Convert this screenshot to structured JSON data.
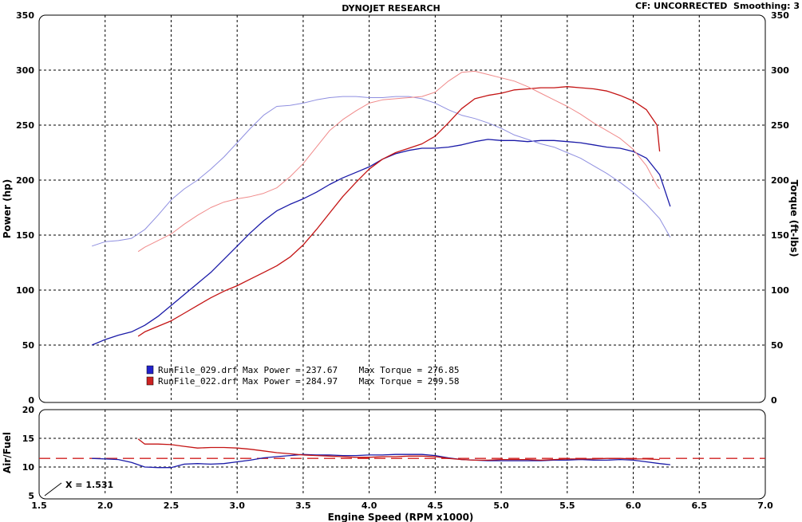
{
  "header": {
    "title": "DYNOJET RESEARCH",
    "cf_text": "CF: UNCORRECTED  Smoothing: 3"
  },
  "cursor_readout": "X = 1.531",
  "colors": {
    "run029_power": "#1a1aa8",
    "run029_torque": "#8f8fe0",
    "run022_power": "#c41414",
    "run022_torque": "#f08a8a",
    "afr_target": "#d02020"
  },
  "legend": [
    {
      "swatch_color": "#2222cc",
      "text": "RunFile_029.drf Max Power = 237.67    Max Torque = 276.85"
    },
    {
      "swatch_color": "#cc2222",
      "text": "RunFile_022.drf Max Power = 284.97    Max Torque = 299.58"
    }
  ],
  "chart_data": [
    {
      "type": "line",
      "title": "DYNOJET RESEARCH",
      "xlabel": "Engine Speed (RPM x1000)",
      "ylabel": "Power (hp)",
      "y2label": "Torque (ft-lbs)",
      "xlim": [
        1.5,
        7.0
      ],
      "ylim": [
        0,
        350
      ],
      "y2lim": [
        0,
        350
      ],
      "xticks": [
        "1.5",
        "2.0",
        "2.5",
        "3.0",
        "3.5",
        "4.0",
        "4.5",
        "5.0",
        "5.5",
        "6.0",
        "6.5",
        "7.0"
      ],
      "yticks": [
        "0",
        "50",
        "100",
        "150",
        "200",
        "250",
        "300",
        "350"
      ],
      "y2ticks": [
        "0",
        "50",
        "100",
        "150",
        "200",
        "250",
        "300",
        "350"
      ],
      "grid": true,
      "series": [
        {
          "name": "RunFile_029.drf",
          "measure": "power",
          "color_key": "run029_power",
          "x": [
            1.9,
            2.0,
            2.1,
            2.2,
            2.3,
            2.4,
            2.5,
            2.6,
            2.7,
            2.8,
            2.9,
            3.0,
            3.1,
            3.2,
            3.3,
            3.4,
            3.5,
            3.6,
            3.7,
            3.8,
            3.9,
            4.0,
            4.1,
            4.2,
            4.3,
            4.4,
            4.5,
            4.6,
            4.7,
            4.8,
            4.9,
            5.0,
            5.1,
            5.2,
            5.3,
            5.4,
            5.5,
            5.6,
            5.7,
            5.8,
            5.9,
            6.0,
            6.1,
            6.2,
            6.28
          ],
          "y": [
            50,
            55,
            59,
            62,
            68,
            76,
            86,
            96,
            106,
            116,
            128,
            140,
            152,
            163,
            172,
            178,
            183,
            189,
            196,
            202,
            207,
            212,
            219,
            224,
            227,
            229,
            229,
            230,
            232,
            235,
            237,
            236,
            236,
            235,
            236,
            236,
            235,
            234,
            232,
            230,
            229,
            226,
            220,
            205,
            176
          ]
        },
        {
          "name": "RunFile_029.drf",
          "measure": "torque",
          "color_key": "run029_torque",
          "x": [
            1.9,
            2.0,
            2.1,
            2.2,
            2.3,
            2.4,
            2.5,
            2.6,
            2.7,
            2.8,
            2.9,
            3.0,
            3.1,
            3.2,
            3.3,
            3.4,
            3.5,
            3.6,
            3.7,
            3.8,
            3.9,
            4.0,
            4.1,
            4.2,
            4.3,
            4.4,
            4.5,
            4.6,
            4.7,
            4.8,
            4.9,
            5.0,
            5.1,
            5.2,
            5.3,
            5.4,
            5.5,
            5.6,
            5.7,
            5.8,
            5.9,
            6.0,
            6.1,
            6.2,
            6.28
          ],
          "y": [
            140,
            144,
            145,
            147,
            155,
            168,
            182,
            192,
            200,
            210,
            221,
            234,
            247,
            259,
            267,
            268,
            270,
            273,
            275,
            276,
            276,
            275,
            275,
            276,
            276,
            274,
            270,
            264,
            259,
            256,
            252,
            247,
            241,
            237,
            233,
            230,
            225,
            220,
            213,
            206,
            198,
            189,
            178,
            165,
            148
          ]
        },
        {
          "name": "RunFile_022.drf",
          "measure": "power",
          "color_key": "run022_power",
          "x": [
            2.25,
            2.3,
            2.4,
            2.5,
            2.6,
            2.7,
            2.8,
            2.9,
            3.0,
            3.1,
            3.2,
            3.3,
            3.4,
            3.5,
            3.6,
            3.7,
            3.8,
            3.9,
            4.0,
            4.1,
            4.2,
            4.3,
            4.4,
            4.5,
            4.6,
            4.7,
            4.8,
            4.9,
            5.0,
            5.1,
            5.2,
            5.3,
            5.4,
            5.5,
            5.6,
            5.7,
            5.8,
            5.9,
            6.0,
            6.1,
            6.18,
            6.2
          ],
          "y": [
            58,
            62,
            67,
            72,
            79,
            86,
            93,
            99,
            104,
            110,
            116,
            122,
            130,
            141,
            155,
            170,
            185,
            198,
            210,
            219,
            225,
            229,
            233,
            240,
            252,
            265,
            274,
            277,
            279,
            282,
            283,
            284,
            284,
            285,
            284,
            283,
            281,
            277,
            272,
            264,
            250,
            226
          ]
        },
        {
          "name": "RunFile_022.drf",
          "measure": "torque",
          "color_key": "run022_torque",
          "x": [
            2.25,
            2.3,
            2.4,
            2.5,
            2.6,
            2.7,
            2.8,
            2.9,
            3.0,
            3.1,
            3.2,
            3.3,
            3.4,
            3.5,
            3.6,
            3.7,
            3.8,
            3.9,
            4.0,
            4.1,
            4.2,
            4.3,
            4.4,
            4.5,
            4.6,
            4.7,
            4.8,
            4.9,
            5.0,
            5.1,
            5.2,
            5.3,
            5.4,
            5.5,
            5.6,
            5.7,
            5.8,
            5.9,
            6.0,
            6.1,
            6.18,
            6.2
          ],
          "y": [
            135,
            139,
            145,
            151,
            160,
            168,
            175,
            180,
            183,
            185,
            188,
            193,
            203,
            215,
            230,
            245,
            255,
            263,
            270,
            273,
            274,
            275,
            276,
            280,
            290,
            298,
            299,
            296,
            293,
            290,
            285,
            279,
            273,
            267,
            260,
            252,
            245,
            238,
            228,
            213,
            195,
            192
          ]
        }
      ]
    },
    {
      "type": "line",
      "xlabel": "Engine Speed (RPM x1000)",
      "ylabel": "Air/Fuel",
      "xlim": [
        1.5,
        7.0
      ],
      "ylim": [
        5,
        20
      ],
      "xticks": [
        "1.5",
        "2.0",
        "2.5",
        "3.0",
        "3.5",
        "4.0",
        "4.5",
        "5.0",
        "5.5",
        "6.0",
        "6.5",
        "7.0"
      ],
      "yticks": [
        "5",
        "10",
        "15",
        "20"
      ],
      "grid": true,
      "reference_line": {
        "y": 11.5,
        "color_key": "afr_target",
        "style": "dashed"
      },
      "series": [
        {
          "name": "RunFile_029.drf",
          "color_key": "run029_power",
          "x": [
            1.9,
            2.0,
            2.1,
            2.2,
            2.3,
            2.4,
            2.5,
            2.6,
            2.7,
            2.8,
            2.9,
            3.0,
            3.1,
            3.2,
            3.3,
            3.4,
            3.5,
            3.6,
            3.7,
            3.8,
            3.9,
            4.0,
            4.1,
            4.2,
            4.3,
            4.4,
            4.5,
            4.6,
            4.7,
            4.8,
            4.9,
            5.0,
            5.1,
            5.2,
            5.3,
            5.4,
            5.5,
            5.6,
            5.7,
            5.8,
            5.9,
            6.0,
            6.1,
            6.2,
            6.28
          ],
          "y": [
            11.5,
            11.4,
            11.3,
            10.8,
            10.0,
            9.9,
            9.9,
            10.5,
            10.6,
            10.5,
            10.6,
            10.9,
            11.2,
            11.6,
            11.8,
            12.0,
            12.2,
            12.1,
            12.1,
            12.0,
            12.0,
            12.1,
            12.1,
            12.2,
            12.2,
            12.2,
            12.0,
            11.6,
            11.3,
            11.2,
            11.1,
            11.1,
            11.1,
            11.1,
            11.1,
            11.2,
            11.2,
            11.3,
            11.2,
            11.2,
            11.3,
            11.2,
            10.9,
            10.6,
            10.4
          ]
        },
        {
          "name": "RunFile_022.drf",
          "color_key": "run022_power",
          "x": [
            2.25,
            2.3,
            2.4,
            2.5,
            2.6,
            2.7,
            2.8,
            2.9,
            3.0,
            3.1,
            3.2,
            3.3,
            3.4,
            3.5,
            3.6,
            3.7,
            3.8,
            3.9,
            4.0,
            4.1,
            4.2,
            4.3,
            4.4,
            4.5,
            4.6,
            4.7,
            4.8,
            4.9,
            5.0,
            5.1,
            5.2,
            5.3,
            5.4,
            5.5,
            5.6,
            5.7,
            5.8,
            5.9,
            6.0,
            6.1,
            6.2
          ],
          "y": [
            14.9,
            14.0,
            14.0,
            13.9,
            13.6,
            13.3,
            13.4,
            13.4,
            13.3,
            13.1,
            12.8,
            12.5,
            12.3,
            12.1,
            12.0,
            11.9,
            11.8,
            11.7,
            11.7,
            11.8,
            11.8,
            11.9,
            11.9,
            11.8,
            11.5,
            11.3,
            11.2,
            11.2,
            11.3,
            11.3,
            11.3,
            11.2,
            11.3,
            11.4,
            11.4,
            11.4,
            11.5,
            11.5,
            11.4,
            11.4,
            11.3
          ]
        }
      ]
    }
  ]
}
